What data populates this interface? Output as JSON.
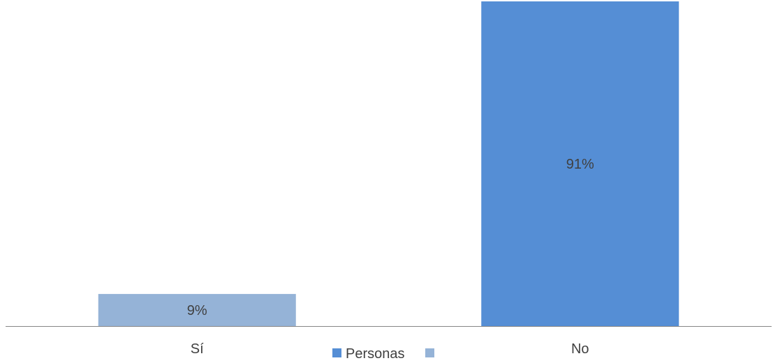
{
  "chart_data": {
    "type": "bar",
    "categories": [
      "Sí",
      "No"
    ],
    "values": [
      9,
      91
    ],
    "data_labels": [
      "9%",
      "91%"
    ],
    "bar_colors": [
      "#95b3d7",
      "#558ed5"
    ],
    "ylim": [
      0,
      100
    ],
    "grid": false,
    "legend": {
      "placement": "bottom",
      "entries": [
        {
          "label": "Personas",
          "color": "#558ed5"
        },
        {
          "label": "",
          "color": "#95b3d7"
        }
      ]
    },
    "axis_color": "#868686"
  }
}
